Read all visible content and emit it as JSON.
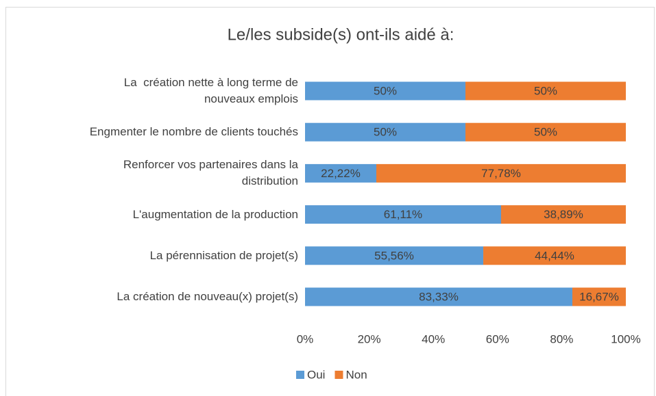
{
  "chart_data": {
    "type": "stacked_barh",
    "title": "Le/les subside(s) ont-ils aidé à:",
    "categories": [
      "La  création nette à long terme de\nnouveaux emplois",
      "Engmenter le nombre de clients touchés",
      "Renforcer vos partenaires dans la\ndistribution",
      "L'augmentation de la production",
      "La pérennisation de projet(s)",
      "La création de nouveau(x) projet(s)"
    ],
    "series": [
      {
        "name": "Oui",
        "color": "#5b9bd5",
        "values": [
          50,
          50,
          22.22,
          61.11,
          55.56,
          83.33
        ],
        "value_labels": [
          "50%",
          "50%",
          "22,22%",
          "61,11%",
          "55,56%",
          "83,33%"
        ]
      },
      {
        "name": "Non",
        "color": "#ed7d31",
        "values": [
          50,
          50,
          77.78,
          38.89,
          44.44,
          16.67
        ],
        "value_labels": [
          "50%",
          "50%",
          "77,78%",
          "38,89%",
          "44,44%",
          "16,67%"
        ]
      }
    ],
    "xlim": [
      0,
      100
    ],
    "xticks": [
      {
        "value": 0,
        "label": "0%"
      },
      {
        "value": 20,
        "label": "20%"
      },
      {
        "value": 40,
        "label": "40%"
      },
      {
        "value": 60,
        "label": "60%"
      },
      {
        "value": 80,
        "label": "80%"
      },
      {
        "value": 100,
        "label": "100%"
      }
    ],
    "legend": "bottom"
  }
}
